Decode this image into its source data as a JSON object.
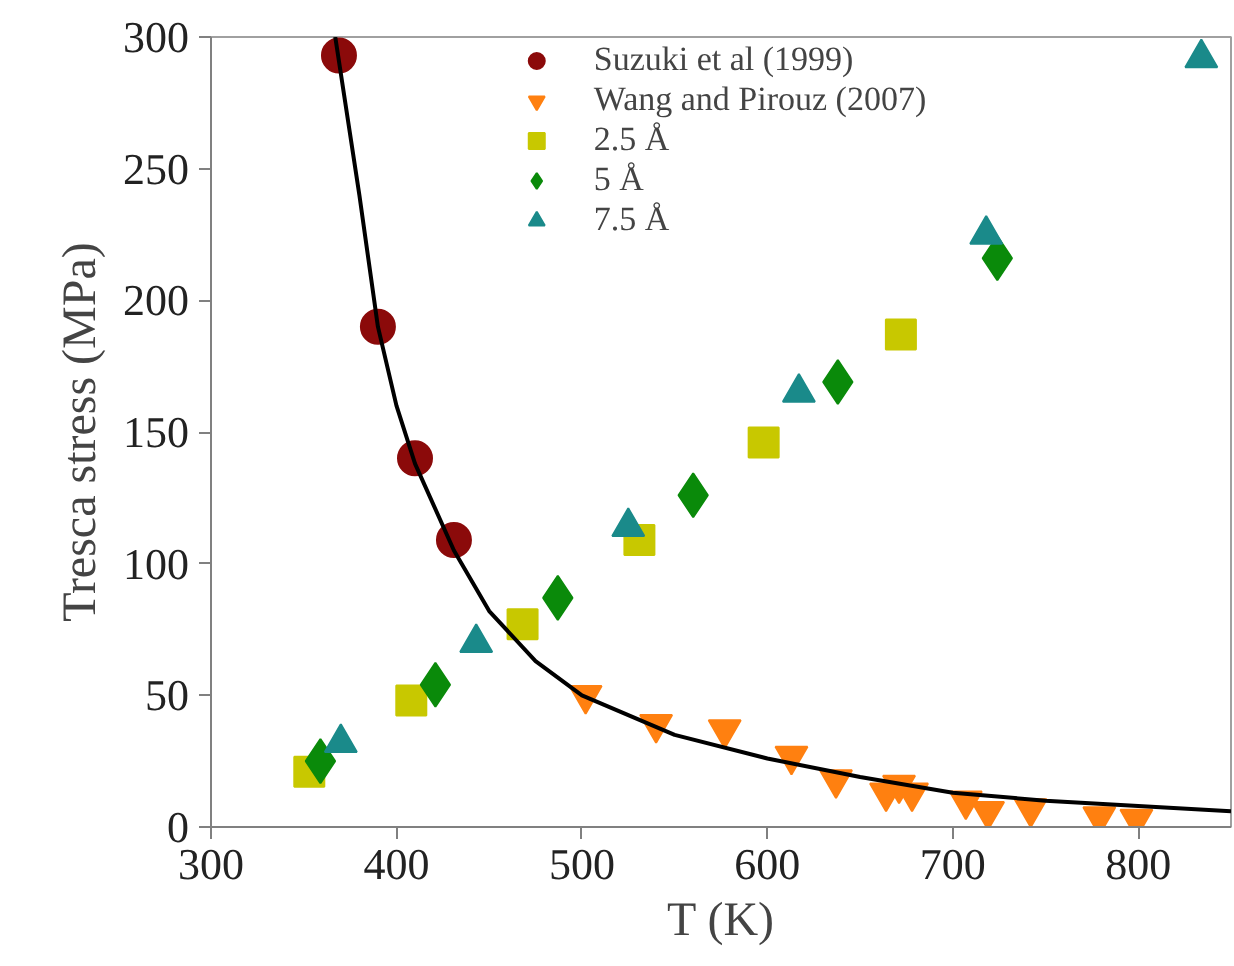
{
  "chart_data": {
    "type": "scatter",
    "xlabel": "T (K)",
    "ylabel": "Tresca stress (MPa)",
    "xlim": [
      300,
      850
    ],
    "xticks": [
      300,
      400,
      500,
      600,
      700,
      800
    ],
    "ylim": [
      0,
      300
    ],
    "yticks": [
      0,
      50,
      100,
      150,
      200,
      250,
      300
    ],
    "grid": false,
    "legend": "top",
    "series": [
      {
        "name": "Suzuki et al (1999)",
        "color": "#8b0a0a",
        "marker": "circle",
        "x": [
          369,
          390,
          410,
          431
        ],
        "values": [
          293,
          190,
          140,
          109
        ]
      },
      {
        "name": "Wang and Pirouz (2007)",
        "color": "#ff8010",
        "x": [
          502,
          540,
          577,
          613,
          637,
          664,
          671,
          678,
          707,
          719,
          742,
          779,
          799
        ],
        "values": [
          50,
          39,
          37,
          27,
          18,
          13,
          16,
          13,
          10,
          6,
          7,
          4,
          3
        ]
      },
      {
        "name": "2.5 Å",
        "color": "#c8c800",
        "marker": "square",
        "x": [
          353,
          408,
          468,
          531,
          598,
          672
        ],
        "values": [
          21,
          48,
          77,
          109,
          146,
          187
        ]
      },
      {
        "name": "5 Å",
        "color": "#0a8a0a",
        "marker": "diamond",
        "x": [
          359,
          421,
          487,
          560,
          638,
          724
        ],
        "values": [
          25,
          54,
          87,
          126,
          169,
          216
        ]
      },
      {
        "name": "7.5 Å",
        "color": "#1a8a8a",
        "marker": "triangle",
        "x": [
          370,
          443,
          525,
          617,
          718,
          834
        ],
        "values": [
          32,
          70,
          114,
          165,
          225,
          292
        ]
      },
      {
        "type": "line",
        "color": "#000000",
        "marker": "none",
        "x": [
          367,
          380,
          390,
          400,
          410,
          431,
          450,
          475,
          500,
          550,
          600,
          650,
          700,
          750,
          800,
          850
        ],
        "values": [
          300,
          240,
          190,
          160,
          138,
          105,
          82,
          63,
          50,
          35,
          26,
          19,
          13,
          10,
          8,
          6
        ]
      }
    ]
  }
}
